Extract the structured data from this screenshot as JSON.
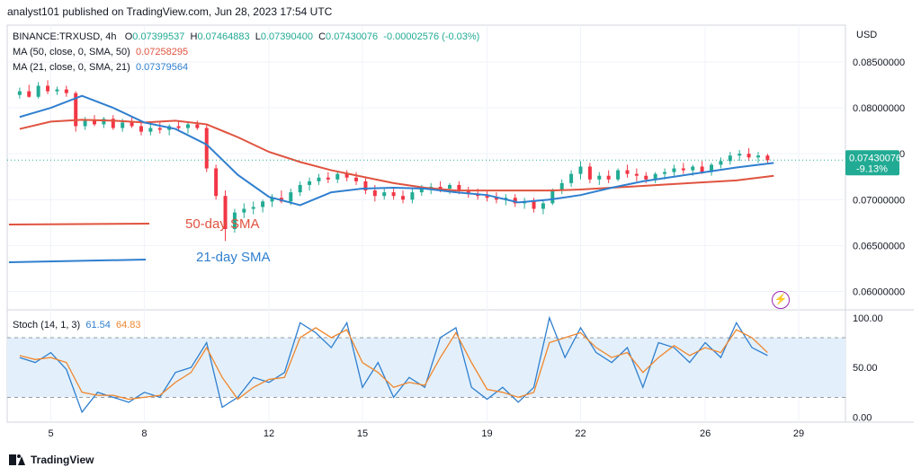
{
  "header": {
    "text": "analyst101 published on TradingView.com, Jun 28, 2023 17:54 UTC"
  },
  "legend": {
    "symbol": "BINANCE:TRXUSD, 4h",
    "o_label": "O",
    "o_val": "0.07399537",
    "h_label": "H",
    "h_val": "0.07464883",
    "l_label": "L",
    "l_val": "0.07390400",
    "c_label": "C",
    "c_val": "0.07430076",
    "change": "-0.00002576 (-0.03%)",
    "ma50_label": "MA (50, close, 0, SMA, 50)",
    "ma50_val": "0.07258295",
    "ma21_label": "MA (21, close, 0, SMA, 21)",
    "ma21_val": "0.07379564"
  },
  "stoch_legend": {
    "label": "Stoch (14, 1, 3)",
    "k_val": "61.54",
    "d_val": "64.83"
  },
  "footer": {
    "text": "TradingView"
  },
  "colors": {
    "up": "#22ab94",
    "down": "#f23645",
    "ma50": "#e0533f",
    "ma21": "#2f7fcf",
    "stoch_k": "#2f7fcf",
    "stoch_d": "#f0862d",
    "stoch_band": "#e3f0fb"
  },
  "chart_data": [
    {
      "type": "candlestick",
      "title": "BINANCE:TRXUSD, 4h",
      "currency_label": "USD",
      "x_ticks": [
        "5",
        "8",
        "12",
        "15",
        "19",
        "22",
        "26",
        "29"
      ],
      "y_ticks": [
        "0.08500000",
        "0.08000000",
        "0.07500000",
        "0.07000000",
        "0.06500000",
        "0.06000000"
      ],
      "ylim": [
        0.058,
        0.089
      ],
      "last_price": "0.07430076",
      "last_change_pct": "-9.13%",
      "annotations": [
        "50-day SMA",
        "21-day SMA"
      ],
      "series": [
        {
          "name": "MA (50, close, 0, SMA, 50)",
          "x": [
            4.0,
            5.0,
            6.0,
            7.0,
            8.0,
            9.0,
            10.0,
            11.0,
            12.0,
            13.0,
            14.0,
            15.0,
            16.0,
            17.0,
            18.0,
            19.0,
            20.0,
            21.0,
            22.0,
            23.0,
            24.0,
            25.0,
            26.0,
            27.0,
            28.2
          ],
          "values": [
            0.0777,
            0.0785,
            0.0787,
            0.0786,
            0.0784,
            0.0786,
            0.0782,
            0.0768,
            0.0752,
            0.0741,
            0.0732,
            0.0725,
            0.0718,
            0.0713,
            0.071,
            0.071,
            0.071,
            0.071,
            0.0711,
            0.0713,
            0.0715,
            0.0717,
            0.0719,
            0.0721,
            0.0726
          ]
        },
        {
          "name": "MA (21, close, 0, SMA, 21)",
          "x": [
            4.0,
            5.0,
            6.0,
            7.0,
            8.0,
            9.0,
            10.0,
            11.0,
            12.0,
            13.0,
            14.0,
            15.0,
            16.0,
            17.0,
            18.0,
            19.0,
            20.0,
            21.0,
            22.0,
            23.0,
            24.0,
            25.0,
            26.0,
            27.0,
            28.2
          ],
          "values": [
            0.079,
            0.08,
            0.0813,
            0.08,
            0.0784,
            0.0777,
            0.076,
            0.0727,
            0.0703,
            0.0694,
            0.0708,
            0.0712,
            0.0713,
            0.0712,
            0.0708,
            0.0705,
            0.0697,
            0.07,
            0.0705,
            0.0713,
            0.072,
            0.0725,
            0.073,
            0.0735,
            0.074
          ]
        }
      ],
      "candles": [
        {
          "x": 4.0,
          "o": 0.0814,
          "h": 0.0822,
          "l": 0.081,
          "c": 0.0818
        },
        {
          "x": 4.3,
          "o": 0.0818,
          "h": 0.0825,
          "l": 0.0811,
          "c": 0.0812
        },
        {
          "x": 4.6,
          "o": 0.0812,
          "h": 0.0828,
          "l": 0.081,
          "c": 0.0824
        },
        {
          "x": 4.9,
          "o": 0.0824,
          "h": 0.083,
          "l": 0.0815,
          "c": 0.0818
        },
        {
          "x": 5.2,
          "o": 0.0818,
          "h": 0.0823,
          "l": 0.0814,
          "c": 0.082
        },
        {
          "x": 5.5,
          "o": 0.082,
          "h": 0.0824,
          "l": 0.0812,
          "c": 0.0816
        },
        {
          "x": 5.8,
          "o": 0.0816,
          "h": 0.0818,
          "l": 0.0774,
          "c": 0.078
        },
        {
          "x": 6.1,
          "o": 0.078,
          "h": 0.079,
          "l": 0.0776,
          "c": 0.0786
        },
        {
          "x": 6.4,
          "o": 0.0786,
          "h": 0.0792,
          "l": 0.078,
          "c": 0.0782
        },
        {
          "x": 6.7,
          "o": 0.0782,
          "h": 0.079,
          "l": 0.0778,
          "c": 0.0788
        },
        {
          "x": 7.0,
          "o": 0.0788,
          "h": 0.0792,
          "l": 0.0776,
          "c": 0.0778
        },
        {
          "x": 7.3,
          "o": 0.0778,
          "h": 0.0788,
          "l": 0.0774,
          "c": 0.0784
        },
        {
          "x": 7.6,
          "o": 0.0784,
          "h": 0.079,
          "l": 0.0778,
          "c": 0.078
        },
        {
          "x": 7.9,
          "o": 0.078,
          "h": 0.0784,
          "l": 0.077,
          "c": 0.0774
        },
        {
          "x": 8.2,
          "o": 0.0774,
          "h": 0.0782,
          "l": 0.077,
          "c": 0.0778
        },
        {
          "x": 8.5,
          "o": 0.0778,
          "h": 0.0784,
          "l": 0.0772,
          "c": 0.0776
        },
        {
          "x": 8.8,
          "o": 0.0776,
          "h": 0.0782,
          "l": 0.077,
          "c": 0.078
        },
        {
          "x": 9.1,
          "o": 0.078,
          "h": 0.0786,
          "l": 0.0774,
          "c": 0.0778
        },
        {
          "x": 9.4,
          "o": 0.0778,
          "h": 0.0784,
          "l": 0.0772,
          "c": 0.0782
        },
        {
          "x": 9.7,
          "o": 0.0782,
          "h": 0.0786,
          "l": 0.0776,
          "c": 0.0778
        },
        {
          "x": 10.0,
          "o": 0.0778,
          "h": 0.0782,
          "l": 0.073,
          "c": 0.0734
        },
        {
          "x": 10.3,
          "o": 0.0734,
          "h": 0.0738,
          "l": 0.07,
          "c": 0.0704
        },
        {
          "x": 10.6,
          "o": 0.0704,
          "h": 0.071,
          "l": 0.0655,
          "c": 0.0668
        },
        {
          "x": 10.9,
          "o": 0.0668,
          "h": 0.069,
          "l": 0.0664,
          "c": 0.0686
        },
        {
          "x": 11.2,
          "o": 0.0686,
          "h": 0.0696,
          "l": 0.068,
          "c": 0.069
        },
        {
          "x": 11.5,
          "o": 0.069,
          "h": 0.0698,
          "l": 0.0684,
          "c": 0.0692
        },
        {
          "x": 11.8,
          "o": 0.0692,
          "h": 0.07,
          "l": 0.0686,
          "c": 0.0698
        },
        {
          "x": 12.1,
          "o": 0.0698,
          "h": 0.0706,
          "l": 0.0692,
          "c": 0.0702
        },
        {
          "x": 12.4,
          "o": 0.0702,
          "h": 0.071,
          "l": 0.0696,
          "c": 0.0698
        },
        {
          "x": 12.7,
          "o": 0.0698,
          "h": 0.0712,
          "l": 0.0694,
          "c": 0.0708
        },
        {
          "x": 13.0,
          "o": 0.0708,
          "h": 0.072,
          "l": 0.0704,
          "c": 0.0716
        },
        {
          "x": 13.3,
          "o": 0.0716,
          "h": 0.0724,
          "l": 0.071,
          "c": 0.072
        },
        {
          "x": 13.6,
          "o": 0.072,
          "h": 0.0728,
          "l": 0.0716,
          "c": 0.0724
        },
        {
          "x": 13.9,
          "o": 0.0724,
          "h": 0.073,
          "l": 0.0718,
          "c": 0.0722
        },
        {
          "x": 14.2,
          "o": 0.0722,
          "h": 0.073,
          "l": 0.0718,
          "c": 0.0728
        },
        {
          "x": 14.5,
          "o": 0.0728,
          "h": 0.0732,
          "l": 0.072,
          "c": 0.0724
        },
        {
          "x": 14.8,
          "o": 0.0724,
          "h": 0.073,
          "l": 0.0716,
          "c": 0.072
        },
        {
          "x": 15.1,
          "o": 0.072,
          "h": 0.0724,
          "l": 0.0706,
          "c": 0.071
        },
        {
          "x": 15.4,
          "o": 0.071,
          "h": 0.0716,
          "l": 0.0698,
          "c": 0.0704
        },
        {
          "x": 15.7,
          "o": 0.0704,
          "h": 0.0712,
          "l": 0.07,
          "c": 0.0708
        },
        {
          "x": 16.0,
          "o": 0.0708,
          "h": 0.0714,
          "l": 0.07,
          "c": 0.0704
        },
        {
          "x": 16.3,
          "o": 0.0704,
          "h": 0.071,
          "l": 0.0696,
          "c": 0.07
        },
        {
          "x": 16.6,
          "o": 0.07,
          "h": 0.0712,
          "l": 0.0696,
          "c": 0.0708
        },
        {
          "x": 16.9,
          "o": 0.0708,
          "h": 0.0716,
          "l": 0.0704,
          "c": 0.0712
        },
        {
          "x": 17.2,
          "o": 0.0712,
          "h": 0.0718,
          "l": 0.0706,
          "c": 0.0714
        },
        {
          "x": 17.5,
          "o": 0.0714,
          "h": 0.072,
          "l": 0.0708,
          "c": 0.0712
        },
        {
          "x": 17.8,
          "o": 0.0712,
          "h": 0.0718,
          "l": 0.0706,
          "c": 0.0716
        },
        {
          "x": 18.1,
          "o": 0.0716,
          "h": 0.072,
          "l": 0.0706,
          "c": 0.071
        },
        {
          "x": 18.4,
          "o": 0.071,
          "h": 0.0714,
          "l": 0.0702,
          "c": 0.0706
        },
        {
          "x": 18.7,
          "o": 0.0706,
          "h": 0.0712,
          "l": 0.07,
          "c": 0.0704
        },
        {
          "x": 19.0,
          "o": 0.0704,
          "h": 0.071,
          "l": 0.0698,
          "c": 0.0702
        },
        {
          "x": 19.3,
          "o": 0.0702,
          "h": 0.0708,
          "l": 0.0696,
          "c": 0.07
        },
        {
          "x": 19.6,
          "o": 0.07,
          "h": 0.0706,
          "l": 0.0694,
          "c": 0.0702
        },
        {
          "x": 19.9,
          "o": 0.0702,
          "h": 0.0706,
          "l": 0.0692,
          "c": 0.0696
        },
        {
          "x": 20.2,
          "o": 0.0696,
          "h": 0.0702,
          "l": 0.069,
          "c": 0.0698
        },
        {
          "x": 20.5,
          "o": 0.0698,
          "h": 0.0702,
          "l": 0.0686,
          "c": 0.069
        },
        {
          "x": 20.8,
          "o": 0.069,
          "h": 0.07,
          "l": 0.0684,
          "c": 0.0696
        },
        {
          "x": 21.1,
          "o": 0.0696,
          "h": 0.0712,
          "l": 0.0694,
          "c": 0.071
        },
        {
          "x": 21.4,
          "o": 0.071,
          "h": 0.0722,
          "l": 0.0706,
          "c": 0.0718
        },
        {
          "x": 21.7,
          "o": 0.0718,
          "h": 0.0732,
          "l": 0.0714,
          "c": 0.0728
        },
        {
          "x": 22.0,
          "o": 0.0728,
          "h": 0.0742,
          "l": 0.0722,
          "c": 0.0736
        },
        {
          "x": 22.3,
          "o": 0.0736,
          "h": 0.074,
          "l": 0.0718,
          "c": 0.0722
        },
        {
          "x": 22.6,
          "o": 0.0722,
          "h": 0.073,
          "l": 0.0716,
          "c": 0.0726
        },
        {
          "x": 22.9,
          "o": 0.0726,
          "h": 0.0732,
          "l": 0.0718,
          "c": 0.0722
        },
        {
          "x": 23.2,
          "o": 0.0722,
          "h": 0.0734,
          "l": 0.072,
          "c": 0.0732
        },
        {
          "x": 23.5,
          "o": 0.0732,
          "h": 0.0738,
          "l": 0.0724,
          "c": 0.0728
        },
        {
          "x": 23.8,
          "o": 0.0728,
          "h": 0.0734,
          "l": 0.072,
          "c": 0.0726
        },
        {
          "x": 24.1,
          "o": 0.0726,
          "h": 0.073,
          "l": 0.0718,
          "c": 0.0722
        },
        {
          "x": 24.4,
          "o": 0.0722,
          "h": 0.073,
          "l": 0.0718,
          "c": 0.0728
        },
        {
          "x": 24.7,
          "o": 0.0728,
          "h": 0.0734,
          "l": 0.0722,
          "c": 0.073
        },
        {
          "x": 25.0,
          "o": 0.073,
          "h": 0.0738,
          "l": 0.0726,
          "c": 0.0734
        },
        {
          "x": 25.3,
          "o": 0.0734,
          "h": 0.074,
          "l": 0.0728,
          "c": 0.0732
        },
        {
          "x": 25.6,
          "o": 0.0732,
          "h": 0.0738,
          "l": 0.0726,
          "c": 0.0736
        },
        {
          "x": 25.9,
          "o": 0.0736,
          "h": 0.0742,
          "l": 0.0728,
          "c": 0.073
        },
        {
          "x": 26.2,
          "o": 0.073,
          "h": 0.074,
          "l": 0.0726,
          "c": 0.0738
        },
        {
          "x": 26.5,
          "o": 0.0738,
          "h": 0.0746,
          "l": 0.0734,
          "c": 0.0742
        },
        {
          "x": 26.8,
          "o": 0.0742,
          "h": 0.0752,
          "l": 0.0738,
          "c": 0.0748
        },
        {
          "x": 27.1,
          "o": 0.0748,
          "h": 0.0754,
          "l": 0.0742,
          "c": 0.075
        },
        {
          "x": 27.4,
          "o": 0.075,
          "h": 0.0756,
          "l": 0.0742,
          "c": 0.0746
        },
        {
          "x": 27.7,
          "o": 0.0746,
          "h": 0.0752,
          "l": 0.074,
          "c": 0.0748
        },
        {
          "x": 28.0,
          "o": 0.0748,
          "h": 0.075,
          "l": 0.074,
          "c": 0.0743
        }
      ]
    },
    {
      "type": "line",
      "title": "Stoch (14, 1, 3)",
      "y_ticks": [
        "100.00",
        "50.00",
        "0.00"
      ],
      "ylim": [
        -5,
        108
      ],
      "band": [
        20,
        80
      ],
      "series": [
        {
          "name": "%K",
          "x": [
            4.0,
            4.5,
            5.0,
            5.5,
            6.0,
            6.5,
            7.0,
            7.5,
            8.0,
            8.5,
            9.0,
            9.5,
            10.0,
            10.5,
            11.0,
            11.5,
            12.0,
            12.5,
            13.0,
            13.5,
            14.0,
            14.5,
            15.0,
            15.5,
            16.0,
            16.5,
            17.0,
            17.5,
            18.0,
            18.5,
            19.0,
            19.5,
            20.0,
            20.5,
            21.0,
            21.5,
            22.0,
            22.5,
            23.0,
            23.5,
            24.0,
            24.5,
            25.0,
            25.5,
            26.0,
            26.5,
            27.0,
            27.5,
            28.0
          ],
          "values": [
            60,
            55,
            65,
            48,
            5,
            25,
            20,
            15,
            25,
            20,
            45,
            50,
            75,
            10,
            20,
            40,
            35,
            45,
            95,
            85,
            70,
            95,
            30,
            55,
            20,
            40,
            30,
            80,
            90,
            30,
            18,
            30,
            15,
            30,
            100,
            60,
            90,
            65,
            55,
            70,
            30,
            75,
            70,
            55,
            75,
            60,
            95,
            70,
            62
          ]
        },
        {
          "name": "%D",
          "x": [
            4.0,
            4.5,
            5.0,
            5.5,
            6.0,
            6.5,
            7.0,
            7.5,
            8.0,
            8.5,
            9.0,
            9.5,
            10.0,
            10.5,
            11.0,
            11.5,
            12.0,
            12.5,
            13.0,
            13.5,
            14.0,
            14.5,
            15.0,
            15.5,
            16.0,
            16.5,
            17.0,
            17.5,
            18.0,
            18.5,
            19.0,
            19.5,
            20.0,
            20.5,
            21.0,
            21.5,
            22.0,
            22.5,
            23.0,
            23.5,
            24.0,
            24.5,
            25.0,
            25.5,
            26.0,
            26.5,
            27.0,
            27.5,
            28.0
          ],
          "values": [
            62,
            58,
            60,
            55,
            25,
            22,
            22,
            18,
            20,
            22,
            35,
            45,
            70,
            40,
            18,
            30,
            38,
            40,
            80,
            90,
            80,
            88,
            55,
            45,
            30,
            35,
            32,
            60,
            85,
            55,
            28,
            25,
            20,
            25,
            75,
            80,
            85,
            70,
            60,
            65,
            45,
            60,
            72,
            62,
            70,
            65,
            88,
            80,
            65
          ]
        }
      ]
    }
  ]
}
